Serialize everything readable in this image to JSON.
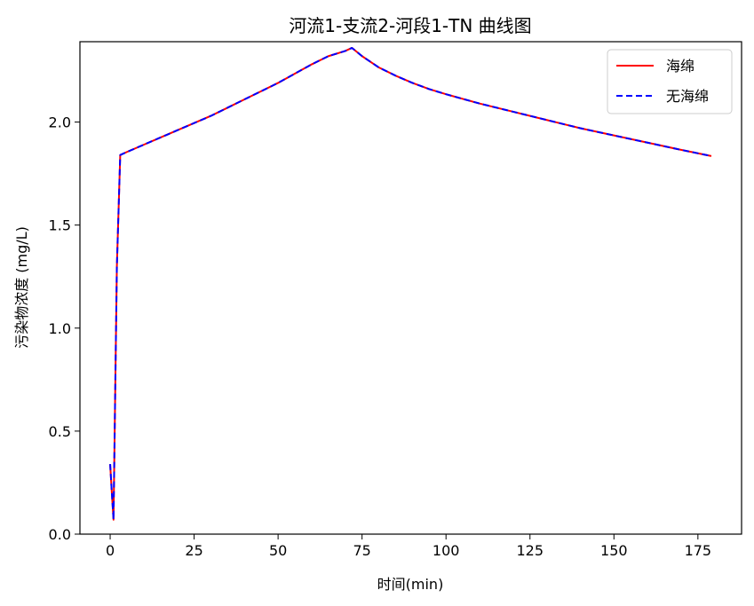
{
  "chart_data": {
    "type": "line",
    "title": "河流1-支流2-河段1-TN 曲线图",
    "xlabel": "时间(min)",
    "ylabel": "污染物浓度 (mg/L)",
    "xlim": [
      -9,
      188
    ],
    "ylim": [
      0,
      2.39
    ],
    "xticks": [
      0,
      25,
      50,
      75,
      100,
      125,
      150,
      175
    ],
    "yticks": [
      0.0,
      0.5,
      1.0,
      1.5,
      2.0
    ],
    "xtick_labels": [
      "0",
      "25",
      "50",
      "75",
      "100",
      "125",
      "150",
      "175"
    ],
    "ytick_labels": [
      "0.0",
      "0.5",
      "1.0",
      "1.5",
      "2.0"
    ],
    "grid": false,
    "legend_position": "top-right",
    "series": [
      {
        "name": "海绵",
        "color": "#ff0000",
        "style": "solid",
        "x": [
          0,
          0.5,
          1,
          2,
          3,
          5,
          10,
          15,
          20,
          25,
          30,
          35,
          40,
          45,
          50,
          55,
          60,
          65,
          70,
          72,
          75,
          80,
          85,
          90,
          95,
          100,
          110,
          120,
          130,
          140,
          150,
          160,
          170,
          179
        ],
        "y": [
          0.34,
          0.2,
          0.07,
          1.3,
          1.84,
          1.855,
          1.89,
          1.925,
          1.96,
          1.995,
          2.03,
          2.07,
          2.11,
          2.15,
          2.19,
          2.235,
          2.28,
          2.32,
          2.345,
          2.36,
          2.32,
          2.265,
          2.225,
          2.19,
          2.16,
          2.135,
          2.09,
          2.05,
          2.01,
          1.97,
          1.935,
          1.9,
          1.865,
          1.835
        ]
      },
      {
        "name": "无海绵",
        "color": "#0000ff",
        "style": "dashed",
        "x": [
          0,
          0.5,
          1,
          2,
          3,
          5,
          10,
          15,
          20,
          25,
          30,
          35,
          40,
          45,
          50,
          55,
          60,
          65,
          70,
          72,
          75,
          80,
          85,
          90,
          95,
          100,
          110,
          120,
          130,
          140,
          150,
          160,
          170,
          179
        ],
        "y": [
          0.34,
          0.2,
          0.07,
          1.3,
          1.84,
          1.855,
          1.89,
          1.925,
          1.96,
          1.995,
          2.03,
          2.07,
          2.11,
          2.15,
          2.19,
          2.235,
          2.28,
          2.32,
          2.345,
          2.36,
          2.32,
          2.265,
          2.225,
          2.19,
          2.16,
          2.135,
          2.09,
          2.05,
          2.01,
          1.97,
          1.935,
          1.9,
          1.865,
          1.835
        ]
      }
    ]
  }
}
